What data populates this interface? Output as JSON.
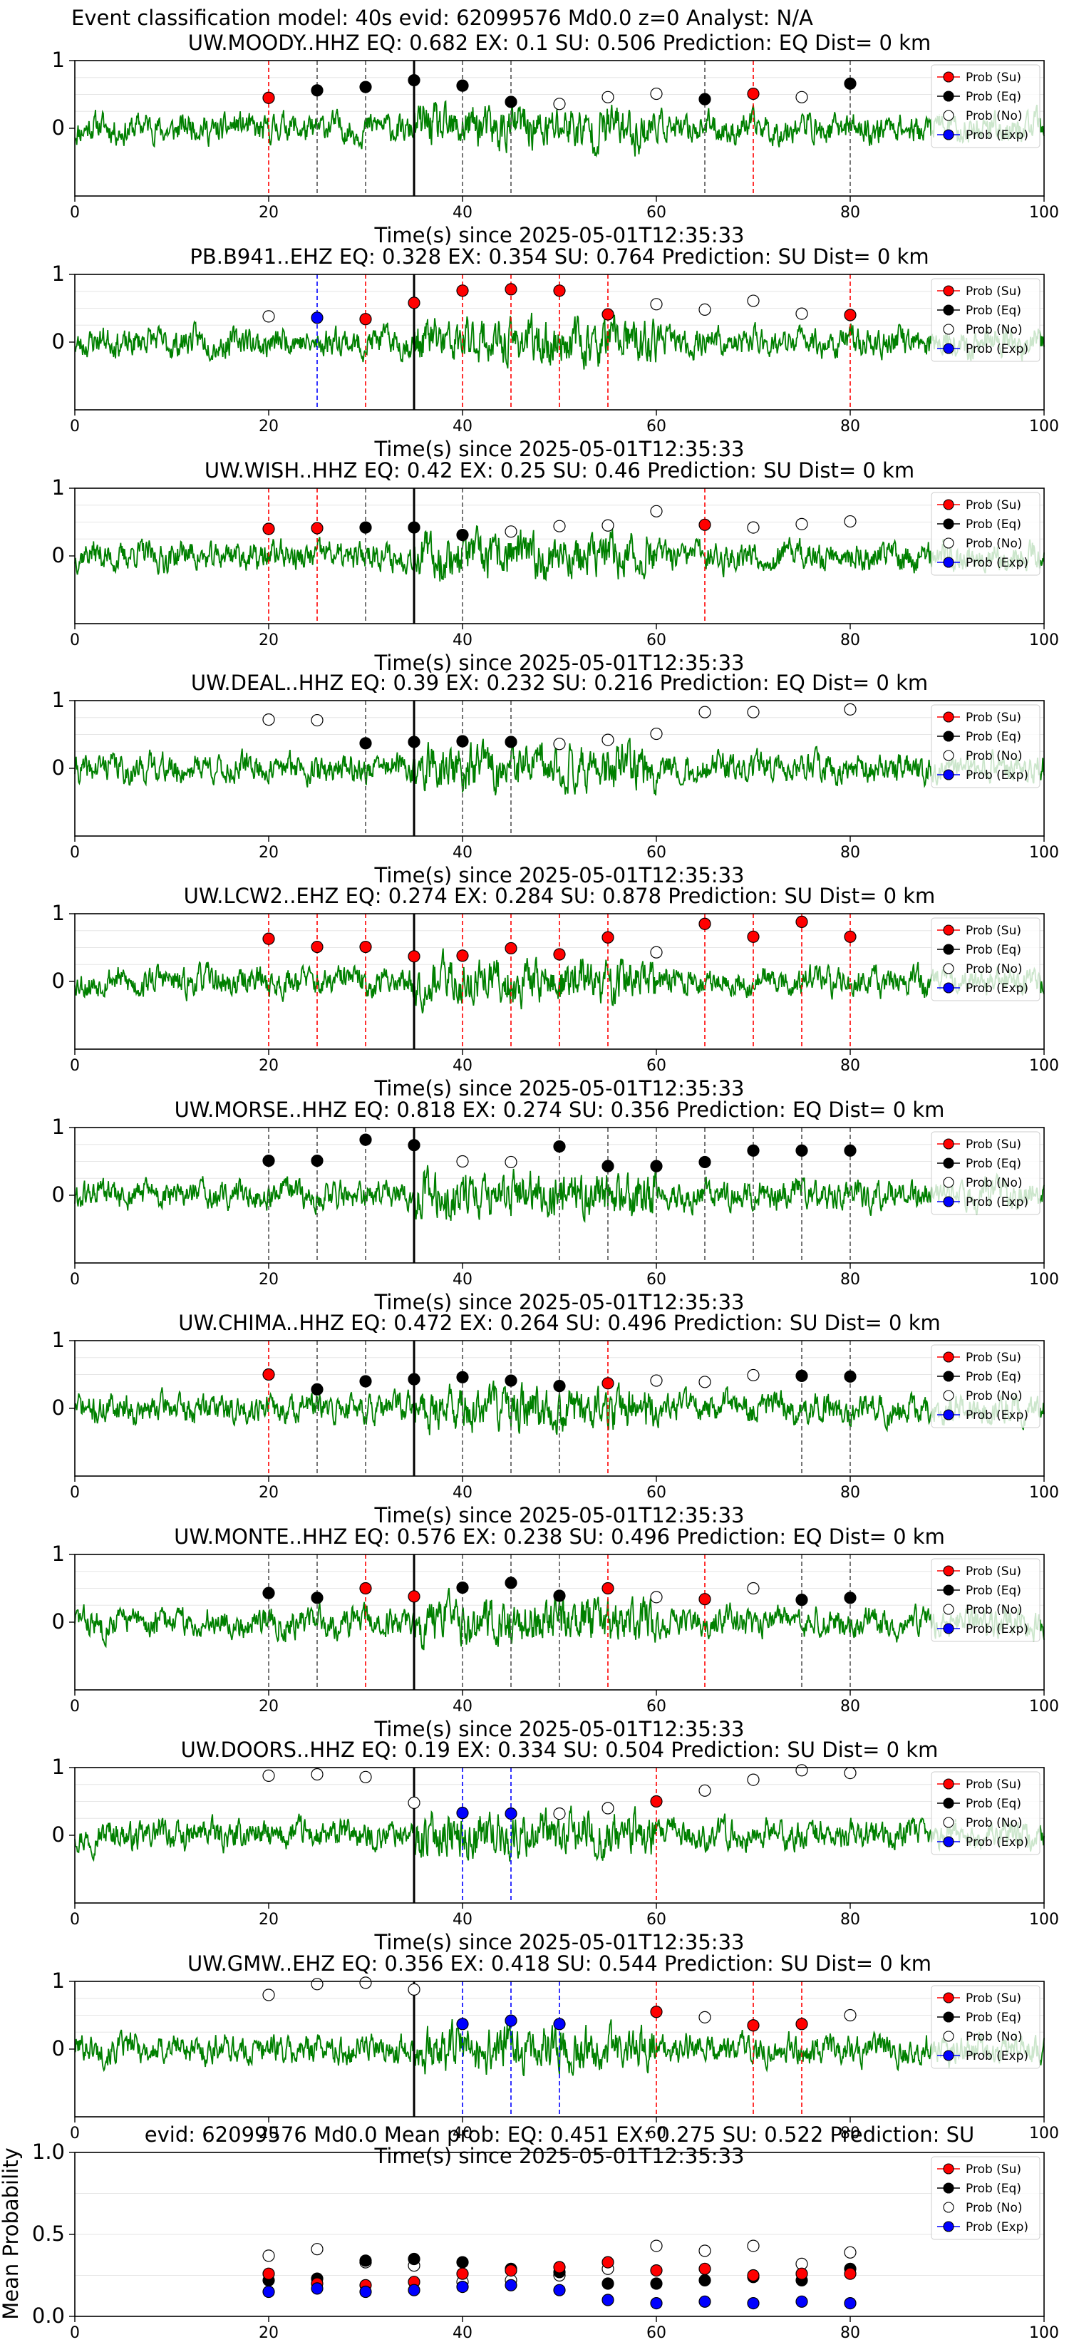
{
  "suptitle": "Event classification model: 40s evid: 62099576 Md0.0 z=0 Analyst: N/A",
  "legend_labels": [
    "Prob (Su)",
    "Prob (Eq)",
    "Prob (No)",
    "Prob (Exp)"
  ],
  "colors": {
    "su": "#ff0000",
    "eq": "#000000",
    "no": "#ffffff",
    "exp": "#0000ff",
    "trace": "#008000"
  },
  "chart_data": [
    {
      "type": "line",
      "title": "UW.MOODY..HHZ   EQ: 0.682  EX: 0.1  SU: 0.506   Prediction: EQ    Dist= 0 km",
      "xlabel": "Time(s) since 2025-05-01T12:35:33",
      "xlim": [
        0,
        100
      ],
      "ylim": [
        -1,
        1
      ],
      "xticks": [
        0,
        20,
        40,
        60,
        80,
        100
      ],
      "yticks": [
        0,
        1
      ],
      "seed": 11,
      "pick_time": 35,
      "points": [
        {
          "t": 20,
          "cls": "su",
          "p": 0.45
        },
        {
          "t": 25,
          "cls": "eq",
          "p": 0.56
        },
        {
          "t": 30,
          "cls": "eq",
          "p": 0.61
        },
        {
          "t": 35,
          "cls": "eq",
          "p": 0.71
        },
        {
          "t": 40,
          "cls": "eq",
          "p": 0.63
        },
        {
          "t": 45,
          "cls": "eq",
          "p": 0.39
        },
        {
          "t": 50,
          "cls": "no",
          "p": 0.36
        },
        {
          "t": 55,
          "cls": "no",
          "p": 0.46
        },
        {
          "t": 60,
          "cls": "no",
          "p": 0.51
        },
        {
          "t": 65,
          "cls": "eq",
          "p": 0.43
        },
        {
          "t": 70,
          "cls": "su",
          "p": 0.51
        },
        {
          "t": 75,
          "cls": "no",
          "p": 0.46
        },
        {
          "t": 80,
          "cls": "eq",
          "p": 0.66
        }
      ]
    },
    {
      "type": "line",
      "title": "PB.B941..EHZ   EQ: 0.328  EX: 0.354  SU: 0.764   Prediction: SU    Dist= 0 km",
      "xlabel": "Time(s) since 2025-05-01T12:35:33",
      "xlim": [
        0,
        100
      ],
      "ylim": [
        -1,
        1
      ],
      "xticks": [
        0,
        20,
        40,
        60,
        80,
        100
      ],
      "yticks": [
        0,
        1
      ],
      "seed": 23,
      "pick_time": 35,
      "points": [
        {
          "t": 20,
          "cls": "no",
          "p": 0.38
        },
        {
          "t": 25,
          "cls": "exp",
          "p": 0.36
        },
        {
          "t": 30,
          "cls": "su",
          "p": 0.34
        },
        {
          "t": 35,
          "cls": "su",
          "p": 0.58
        },
        {
          "t": 40,
          "cls": "su",
          "p": 0.76
        },
        {
          "t": 45,
          "cls": "su",
          "p": 0.78
        },
        {
          "t": 50,
          "cls": "su",
          "p": 0.76
        },
        {
          "t": 55,
          "cls": "su",
          "p": 0.41
        },
        {
          "t": 60,
          "cls": "no",
          "p": 0.56
        },
        {
          "t": 65,
          "cls": "no",
          "p": 0.48
        },
        {
          "t": 70,
          "cls": "no",
          "p": 0.61
        },
        {
          "t": 75,
          "cls": "no",
          "p": 0.42
        },
        {
          "t": 80,
          "cls": "su",
          "p": 0.4
        }
      ]
    },
    {
      "type": "line",
      "title": "UW.WISH..HHZ   EQ: 0.42  EX: 0.25  SU: 0.46   Prediction: SU    Dist= 0 km",
      "xlabel": "Time(s) since 2025-05-01T12:35:33",
      "xlim": [
        0,
        100
      ],
      "ylim": [
        -1,
        1
      ],
      "xticks": [
        0,
        20,
        40,
        60,
        80,
        100
      ],
      "yticks": [
        0,
        1
      ],
      "seed": 37,
      "pick_time": 35,
      "points": [
        {
          "t": 20,
          "cls": "su",
          "p": 0.4
        },
        {
          "t": 25,
          "cls": "su",
          "p": 0.41
        },
        {
          "t": 30,
          "cls": "eq",
          "p": 0.42
        },
        {
          "t": 35,
          "cls": "eq",
          "p": 0.42
        },
        {
          "t": 40,
          "cls": "eq",
          "p": 0.31
        },
        {
          "t": 45,
          "cls": "no",
          "p": 0.36
        },
        {
          "t": 50,
          "cls": "no",
          "p": 0.44
        },
        {
          "t": 55,
          "cls": "no",
          "p": 0.45
        },
        {
          "t": 60,
          "cls": "no",
          "p": 0.66
        },
        {
          "t": 65,
          "cls": "su",
          "p": 0.46
        },
        {
          "t": 70,
          "cls": "no",
          "p": 0.42
        },
        {
          "t": 75,
          "cls": "no",
          "p": 0.47
        },
        {
          "t": 80,
          "cls": "no",
          "p": 0.51
        }
      ]
    },
    {
      "type": "line",
      "title": "UW.DEAL..HHZ   EQ: 0.39  EX: 0.232  SU: 0.216   Prediction: EQ    Dist= 0 km",
      "xlabel": "Time(s) since 2025-05-01T12:35:33",
      "xlim": [
        0,
        100
      ],
      "ylim": [
        -1,
        1
      ],
      "xticks": [
        0,
        20,
        40,
        60,
        80,
        100
      ],
      "yticks": [
        0,
        1
      ],
      "seed": 41,
      "pick_time": 35,
      "points": [
        {
          "t": 20,
          "cls": "no",
          "p": 0.72
        },
        {
          "t": 25,
          "cls": "no",
          "p": 0.71
        },
        {
          "t": 30,
          "cls": "eq",
          "p": 0.37
        },
        {
          "t": 35,
          "cls": "eq",
          "p": 0.39
        },
        {
          "t": 40,
          "cls": "eq",
          "p": 0.4
        },
        {
          "t": 45,
          "cls": "eq",
          "p": 0.39
        },
        {
          "t": 50,
          "cls": "no",
          "p": 0.36
        },
        {
          "t": 55,
          "cls": "no",
          "p": 0.42
        },
        {
          "t": 60,
          "cls": "no",
          "p": 0.51
        },
        {
          "t": 65,
          "cls": "no",
          "p": 0.83
        },
        {
          "t": 70,
          "cls": "no",
          "p": 0.83
        },
        {
          "t": 75,
          "cls": null,
          "p": null
        },
        {
          "t": 80,
          "cls": "no",
          "p": 0.87
        }
      ]
    },
    {
      "type": "line",
      "title": "UW.LCW2..EHZ   EQ: 0.274  EX: 0.284  SU: 0.878   Prediction: SU    Dist= 0 km",
      "xlabel": "Time(s) since 2025-05-01T12:35:33",
      "xlim": [
        0,
        100
      ],
      "ylim": [
        -1,
        1
      ],
      "xticks": [
        0,
        20,
        40,
        60,
        80,
        100
      ],
      "yticks": [
        0,
        1
      ],
      "seed": 53,
      "pick_time": 35,
      "points": [
        {
          "t": 20,
          "cls": "su",
          "p": 0.63
        },
        {
          "t": 25,
          "cls": "su",
          "p": 0.51
        },
        {
          "t": 30,
          "cls": "su",
          "p": 0.51
        },
        {
          "t": 35,
          "cls": "su",
          "p": 0.37
        },
        {
          "t": 40,
          "cls": "su",
          "p": 0.38
        },
        {
          "t": 45,
          "cls": "su",
          "p": 0.49
        },
        {
          "t": 50,
          "cls": "su",
          "p": 0.4
        },
        {
          "t": 55,
          "cls": "su",
          "p": 0.65
        },
        {
          "t": 60,
          "cls": "no",
          "p": 0.43
        },
        {
          "t": 65,
          "cls": "su",
          "p": 0.85
        },
        {
          "t": 70,
          "cls": "su",
          "p": 0.66
        },
        {
          "t": 75,
          "cls": "su",
          "p": 0.88
        },
        {
          "t": 80,
          "cls": "su",
          "p": 0.66
        }
      ]
    },
    {
      "type": "line",
      "title": "UW.MORSE..HHZ   EQ: 0.818  EX: 0.274  SU: 0.356   Prediction: EQ    Dist= 0 km",
      "xlabel": "Time(s) since 2025-05-01T12:35:33",
      "xlim": [
        0,
        100
      ],
      "ylim": [
        -1,
        1
      ],
      "xticks": [
        0,
        20,
        40,
        60,
        80,
        100
      ],
      "yticks": [
        0,
        1
      ],
      "seed": 61,
      "pick_time": 35,
      "points": [
        {
          "t": 20,
          "cls": "eq",
          "p": 0.51
        },
        {
          "t": 25,
          "cls": "eq",
          "p": 0.51
        },
        {
          "t": 30,
          "cls": "eq",
          "p": 0.82
        },
        {
          "t": 35,
          "cls": "eq",
          "p": 0.74
        },
        {
          "t": 40,
          "cls": "no",
          "p": 0.5
        },
        {
          "t": 45,
          "cls": "no",
          "p": 0.49
        },
        {
          "t": 50,
          "cls": "eq",
          "p": 0.72
        },
        {
          "t": 55,
          "cls": "eq",
          "p": 0.43
        },
        {
          "t": 60,
          "cls": "eq",
          "p": 0.43
        },
        {
          "t": 65,
          "cls": "eq",
          "p": 0.49
        },
        {
          "t": 70,
          "cls": "eq",
          "p": 0.66
        },
        {
          "t": 75,
          "cls": "eq",
          "p": 0.66
        },
        {
          "t": 80,
          "cls": "eq",
          "p": 0.66
        }
      ]
    },
    {
      "type": "line",
      "title": "UW.CHIMA..HHZ   EQ: 0.472  EX: 0.264  SU: 0.496   Prediction: SU    Dist= 0 km",
      "xlabel": "Time(s) since 2025-05-01T12:35:33",
      "xlim": [
        0,
        100
      ],
      "ylim": [
        -1,
        1
      ],
      "xticks": [
        0,
        20,
        40,
        60,
        80,
        100
      ],
      "yticks": [
        0,
        1
      ],
      "seed": 71,
      "pick_time": 35,
      "points": [
        {
          "t": 20,
          "cls": "su",
          "p": 0.5
        },
        {
          "t": 25,
          "cls": "eq",
          "p": 0.28
        },
        {
          "t": 30,
          "cls": "eq",
          "p": 0.4
        },
        {
          "t": 35,
          "cls": "eq",
          "p": 0.43
        },
        {
          "t": 40,
          "cls": "eq",
          "p": 0.46
        },
        {
          "t": 45,
          "cls": "eq",
          "p": 0.41
        },
        {
          "t": 50,
          "cls": "eq",
          "p": 0.33
        },
        {
          "t": 55,
          "cls": "su",
          "p": 0.37
        },
        {
          "t": 60,
          "cls": "no",
          "p": 0.41
        },
        {
          "t": 65,
          "cls": "no",
          "p": 0.39
        },
        {
          "t": 70,
          "cls": "no",
          "p": 0.49
        },
        {
          "t": 75,
          "cls": "eq",
          "p": 0.48
        },
        {
          "t": 80,
          "cls": "eq",
          "p": 0.47
        }
      ]
    },
    {
      "type": "line",
      "title": "UW.MONTE..HHZ   EQ: 0.576  EX: 0.238  SU: 0.496   Prediction: EQ    Dist= 0 km",
      "xlabel": "Time(s) since 2025-05-01T12:35:33",
      "xlim": [
        0,
        100
      ],
      "ylim": [
        -1,
        1
      ],
      "xticks": [
        0,
        20,
        40,
        60,
        80,
        100
      ],
      "yticks": [
        0,
        1
      ],
      "seed": 83,
      "pick_time": 35,
      "points": [
        {
          "t": 20,
          "cls": "eq",
          "p": 0.43
        },
        {
          "t": 25,
          "cls": "eq",
          "p": 0.36
        },
        {
          "t": 30,
          "cls": "su",
          "p": 0.5
        },
        {
          "t": 35,
          "cls": "su",
          "p": 0.38
        },
        {
          "t": 40,
          "cls": "eq",
          "p": 0.51
        },
        {
          "t": 45,
          "cls": "eq",
          "p": 0.58
        },
        {
          "t": 50,
          "cls": "eq",
          "p": 0.39
        },
        {
          "t": 55,
          "cls": "su",
          "p": 0.5
        },
        {
          "t": 60,
          "cls": "no",
          "p": 0.37
        },
        {
          "t": 65,
          "cls": "su",
          "p": 0.34
        },
        {
          "t": 70,
          "cls": "no",
          "p": 0.5
        },
        {
          "t": 75,
          "cls": "eq",
          "p": 0.33
        },
        {
          "t": 80,
          "cls": "eq",
          "p": 0.36
        }
      ]
    },
    {
      "type": "line",
      "title": "UW.DOORS..HHZ   EQ: 0.19  EX: 0.334  SU: 0.504   Prediction: SU    Dist= 0 km",
      "xlabel": "Time(s) since 2025-05-01T12:35:33",
      "xlim": [
        0,
        100
      ],
      "ylim": [
        -1,
        1
      ],
      "xticks": [
        0,
        20,
        40,
        60,
        80,
        100
      ],
      "yticks": [
        0,
        1
      ],
      "seed": 97,
      "pick_time": 35,
      "points": [
        {
          "t": 20,
          "cls": "no",
          "p": 0.88
        },
        {
          "t": 25,
          "cls": "no",
          "p": 0.9
        },
        {
          "t": 30,
          "cls": "no",
          "p": 0.86
        },
        {
          "t": 35,
          "cls": "no",
          "p": 0.48
        },
        {
          "t": 40,
          "cls": "exp",
          "p": 0.33
        },
        {
          "t": 45,
          "cls": "exp",
          "p": 0.32
        },
        {
          "t": 50,
          "cls": "no",
          "p": 0.32
        },
        {
          "t": 55,
          "cls": "no",
          "p": 0.4
        },
        {
          "t": 60,
          "cls": "su",
          "p": 0.5
        },
        {
          "t": 65,
          "cls": "no",
          "p": 0.66
        },
        {
          "t": 70,
          "cls": "no",
          "p": 0.82
        },
        {
          "t": 75,
          "cls": "no",
          "p": 0.96
        },
        {
          "t": 80,
          "cls": "no",
          "p": 0.92
        }
      ]
    },
    {
      "type": "line",
      "title": "UW.GMW..EHZ   EQ: 0.356  EX: 0.418  SU: 0.544   Prediction: SU    Dist= 0 km",
      "xlabel": "Time(s) since 2025-05-01T12:35:33",
      "xlim": [
        0,
        100
      ],
      "ylim": [
        -1,
        1
      ],
      "xticks": [
        0,
        20,
        40,
        60,
        80,
        100
      ],
      "yticks": [
        0,
        1
      ],
      "seed": 101,
      "pick_time": 35,
      "points": [
        {
          "t": 20,
          "cls": "no",
          "p": 0.8
        },
        {
          "t": 25,
          "cls": "no",
          "p": 0.96
        },
        {
          "t": 30,
          "cls": "no",
          "p": 0.98
        },
        {
          "t": 35,
          "cls": "no",
          "p": 0.88
        },
        {
          "t": 40,
          "cls": "exp",
          "p": 0.37
        },
        {
          "t": 45,
          "cls": "exp",
          "p": 0.42
        },
        {
          "t": 50,
          "cls": "exp",
          "p": 0.37
        },
        {
          "t": 55,
          "cls": null,
          "p": null
        },
        {
          "t": 60,
          "cls": "su",
          "p": 0.55
        },
        {
          "t": 65,
          "cls": "no",
          "p": 0.47
        },
        {
          "t": 70,
          "cls": "su",
          "p": 0.35
        },
        {
          "t": 75,
          "cls": "su",
          "p": 0.37
        },
        {
          "t": 80,
          "cls": "no",
          "p": 0.5
        }
      ]
    },
    {
      "type": "scatter",
      "title": "evid: 62099576  Md0.0   Mean prob:   EQ: 0.451  EX: 0.275  SU: 0.522   Prediction: SU",
      "xlabel": "",
      "ylabel": "Mean Probability",
      "xlim": [
        0,
        100
      ],
      "ylim": [
        0,
        1
      ],
      "xticks": [
        0,
        20,
        40,
        60,
        80,
        100
      ],
      "yticks": [
        0.0,
        0.5,
        1.0
      ],
      "ytick_labels": [
        "0.0",
        "0.5",
        "1.0"
      ],
      "x": [
        20,
        25,
        30,
        35,
        40,
        45,
        50,
        55,
        60,
        65,
        70,
        75,
        80
      ],
      "series": [
        {
          "key": "no",
          "values": [
            0.37,
            0.41,
            0.33,
            0.31,
            0.21,
            0.22,
            0.25,
            0.29,
            0.43,
            0.4,
            0.43,
            0.32,
            0.39
          ]
        },
        {
          "key": "eq",
          "values": [
            0.22,
            0.23,
            0.34,
            0.35,
            0.33,
            0.29,
            0.27,
            0.2,
            0.2,
            0.22,
            0.24,
            0.22,
            0.29
          ]
        },
        {
          "key": "su",
          "values": [
            0.26,
            0.2,
            0.19,
            0.21,
            0.26,
            0.28,
            0.3,
            0.33,
            0.28,
            0.29,
            0.25,
            0.26,
            0.26
          ]
        },
        {
          "key": "exp",
          "values": [
            0.15,
            0.17,
            0.15,
            0.16,
            0.18,
            0.19,
            0.16,
            0.1,
            0.08,
            0.09,
            0.08,
            0.09,
            0.08
          ]
        }
      ]
    }
  ]
}
